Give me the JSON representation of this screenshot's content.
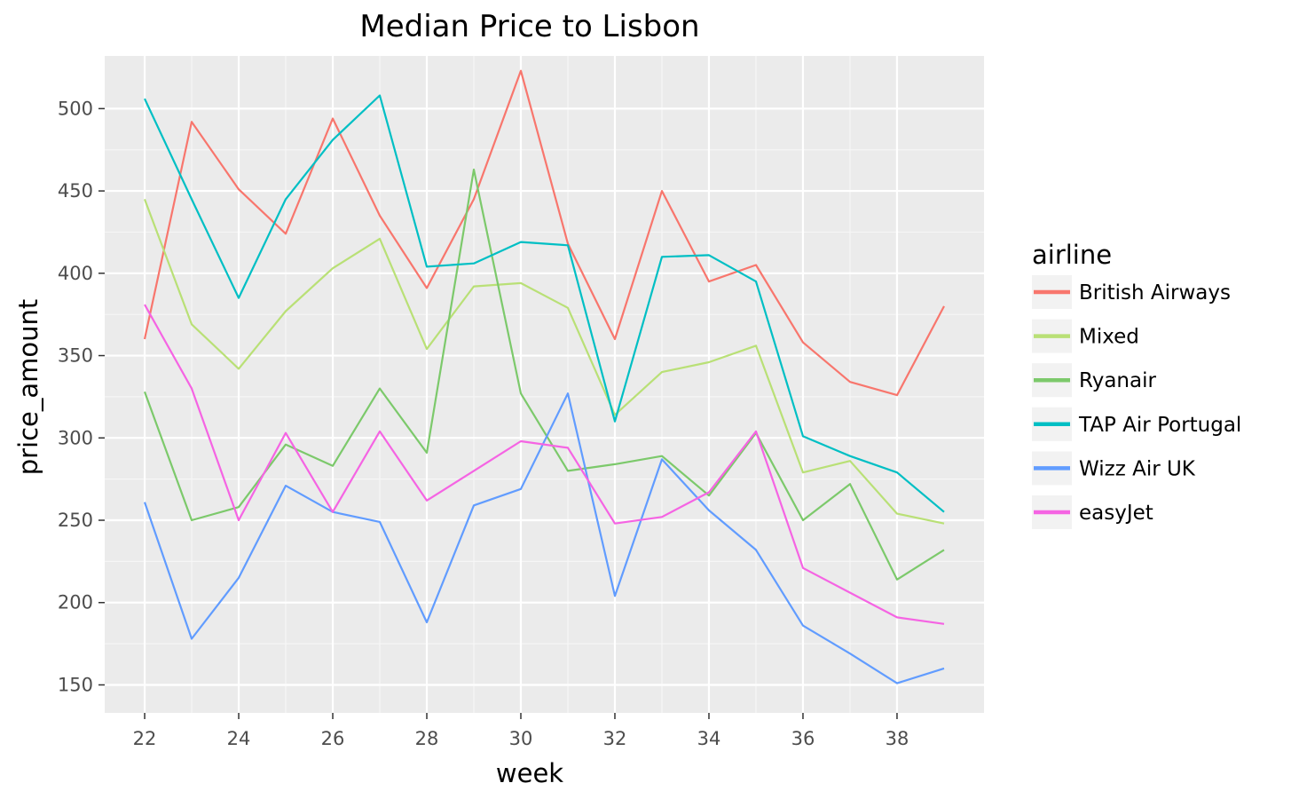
{
  "chart_data": {
    "type": "line",
    "title": "Median Price to Lisbon",
    "xlabel": "week",
    "ylabel": "price_amount",
    "xlim": [
      21.15,
      39.85
    ],
    "ylim": [
      133,
      532
    ],
    "x_ticks": [
      22,
      24,
      26,
      28,
      30,
      32,
      34,
      36,
      38
    ],
    "y_ticks": [
      150,
      200,
      250,
      300,
      350,
      400,
      450,
      500
    ],
    "grid": true,
    "legend_title": "airline",
    "legend_position": "right",
    "x": [
      22,
      23,
      24,
      25,
      26,
      27,
      28,
      29,
      30,
      31,
      32,
      33,
      34,
      35,
      36,
      37,
      38,
      39
    ],
    "series": [
      {
        "name": "British Airways",
        "color": "#F8766D",
        "values": [
          360,
          492,
          451,
          424,
          494,
          435,
          391,
          445,
          523,
          418,
          360,
          450,
          395,
          405,
          358,
          334,
          326,
          380
        ]
      },
      {
        "name": "Mixed",
        "color": "#B9E076",
        "values": [
          445,
          369,
          342,
          377,
          403,
          421,
          354,
          392,
          394,
          379,
          314,
          340,
          346,
          356,
          279,
          286,
          254,
          248
        ]
      },
      {
        "name": "Ryanair",
        "color": "#7CC96B",
        "values": [
          328,
          250,
          258,
          296,
          283,
          330,
          291,
          463,
          327,
          280,
          284,
          289,
          265,
          303,
          250,
          272,
          214,
          232
        ]
      },
      {
        "name": "TAP Air Portugal",
        "color": "#00BFC4",
        "values": [
          506,
          445,
          385,
          445,
          481,
          508,
          404,
          406,
          419,
          417,
          310,
          410,
          411,
          395,
          301,
          289,
          279,
          255
        ]
      },
      {
        "name": "Wizz Air UK",
        "color": "#619CFF",
        "values": [
          261,
          178,
          215,
          271,
          255,
          249,
          188,
          259,
          269,
          327,
          204,
          287,
          256,
          232,
          186,
          169,
          151,
          160
        ]
      },
      {
        "name": "easyJet",
        "color": "#F564E3",
        "values": [
          381,
          330,
          250,
          303,
          255,
          304,
          262,
          280,
          298,
          294,
          248,
          252,
          267,
          304,
          221,
          206,
          191,
          187
        ]
      }
    ]
  }
}
